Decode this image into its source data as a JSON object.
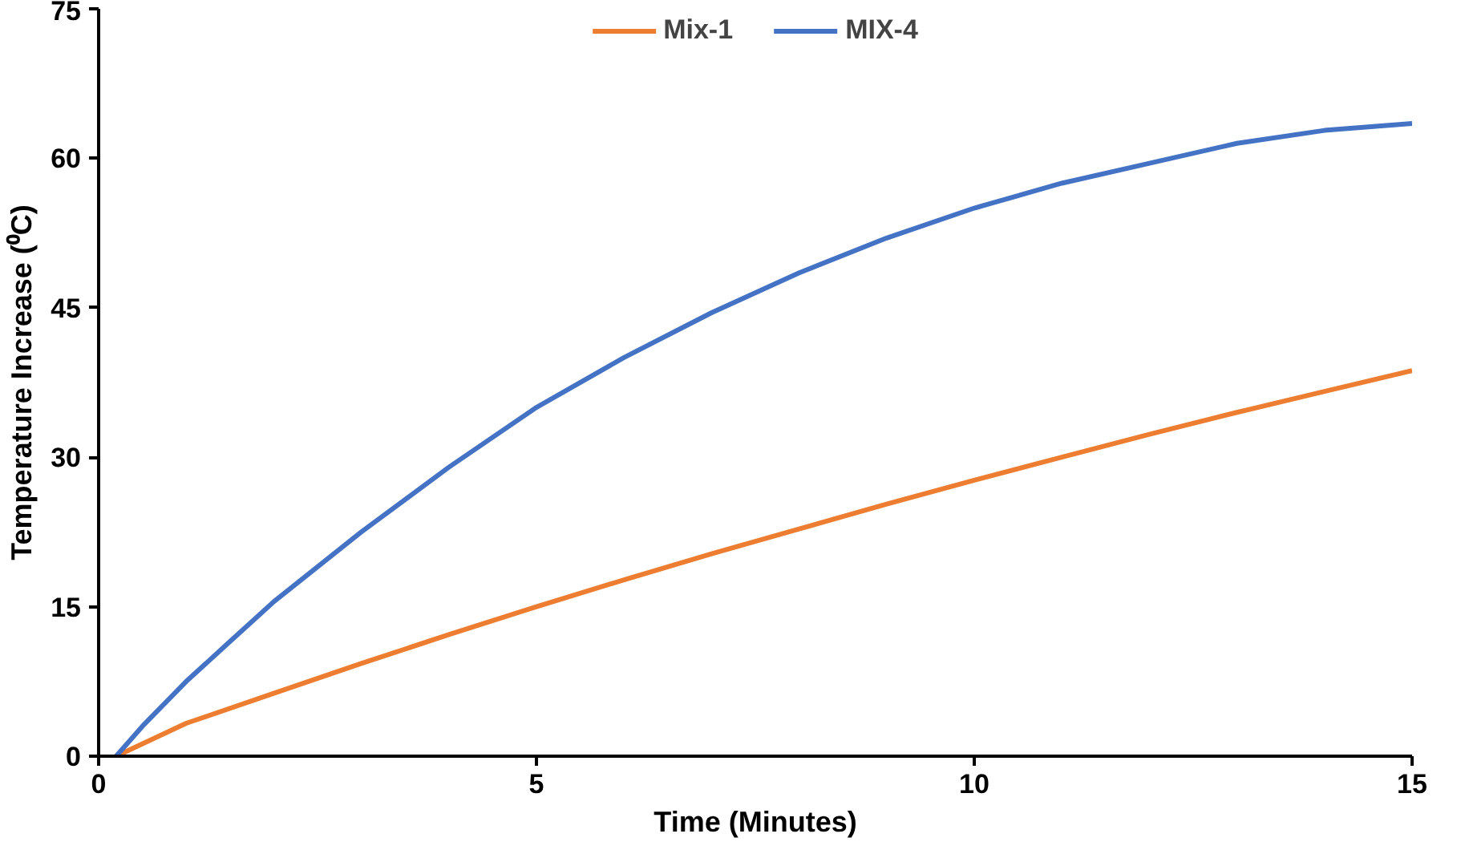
{
  "chart_data": {
    "type": "line",
    "xlabel": "Time (Minutes)",
    "ylabel": "Temperature Increase (⁰C)",
    "xlim": [
      0,
      15
    ],
    "ylim": [
      0,
      75
    ],
    "xticks": [
      0,
      5,
      10,
      15
    ],
    "yticks": [
      0,
      15,
      30,
      45,
      60,
      75
    ],
    "grid": false,
    "legend": "top",
    "marker": "none",
    "line_style": "solid",
    "series": [
      {
        "name": "Mix-1",
        "color": "#ed7d31",
        "x": [
          0.2,
          1,
          2,
          3,
          4,
          5,
          6,
          7,
          8,
          9,
          10,
          11,
          12,
          13,
          14,
          15
        ],
        "values": [
          0,
          3.3,
          6.3,
          9.3,
          12.2,
          15,
          17.7,
          20.3,
          22.8,
          25.3,
          27.7,
          30,
          32.3,
          34.5,
          36.6,
          38.7
        ]
      },
      {
        "name": "MIX-4",
        "color": "#4472c4",
        "x": [
          0.2,
          0.5,
          1,
          1.5,
          2,
          2.5,
          3,
          4,
          5,
          6,
          7,
          8,
          9,
          10,
          11,
          12,
          13,
          14,
          15
        ],
        "values": [
          0,
          3,
          7.5,
          11.5,
          15.5,
          19,
          22.5,
          29,
          35,
          40,
          44.5,
          48.5,
          52,
          55,
          57.5,
          59.5,
          61.5,
          62.8,
          63.5
        ]
      }
    ]
  }
}
